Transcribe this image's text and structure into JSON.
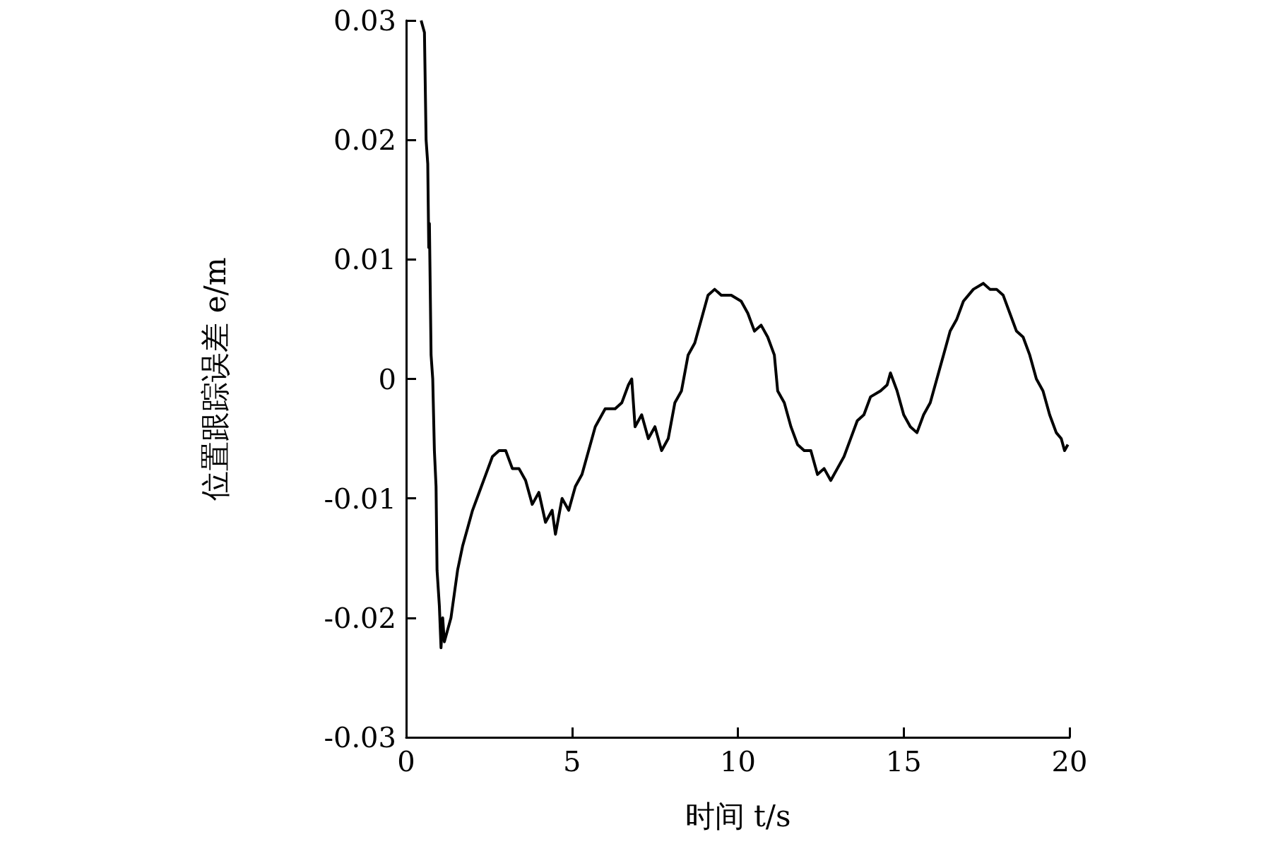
{
  "chart_data": {
    "type": "line",
    "xlabel": "时间 t/s",
    "ylabel": "位置跟踪误差 e/m",
    "x": [
      0.45,
      0.55,
      0.6,
      0.65,
      0.68,
      0.7,
      0.75,
      0.8,
      0.85,
      0.9,
      0.93,
      1.0,
      1.05,
      1.1,
      1.15,
      1.25,
      1.35,
      1.45,
      1.55,
      1.7,
      1.85,
      2.0,
      2.2,
      2.4,
      2.6,
      2.8,
      3.0,
      3.2,
      3.4,
      3.6,
      3.8,
      4.0,
      4.2,
      4.4,
      4.5,
      4.7,
      4.9,
      5.1,
      5.3,
      5.5,
      5.7,
      6.0,
      6.3,
      6.5,
      6.7,
      6.8,
      6.9,
      7.1,
      7.3,
      7.5,
      7.7,
      7.9,
      8.1,
      8.3,
      8.5,
      8.7,
      8.9,
      9.1,
      9.3,
      9.5,
      9.8,
      10.1,
      10.3,
      10.5,
      10.7,
      10.9,
      11.1,
      11.2,
      11.4,
      11.6,
      11.8,
      12.0,
      12.2,
      12.4,
      12.6,
      12.8,
      13.0,
      13.2,
      13.4,
      13.6,
      13.8,
      14.0,
      14.3,
      14.5,
      14.6,
      14.8,
      15.0,
      15.2,
      15.4,
      15.6,
      15.8,
      16.0,
      16.2,
      16.4,
      16.6,
      16.8,
      17.1,
      17.4,
      17.6,
      17.8,
      18.0,
      18.2,
      18.4,
      18.6,
      18.8,
      19.0,
      19.2,
      19.4,
      19.6,
      19.75,
      19.85,
      19.95
    ],
    "series": [
      {
        "color": "#000000",
        "values": [
          0.03,
          0.029,
          0.02,
          0.018,
          0.011,
          0.013,
          0.002,
          0.0,
          -0.006,
          -0.009,
          -0.016,
          -0.019,
          -0.0225,
          -0.02,
          -0.022,
          -0.021,
          -0.02,
          -0.018,
          -0.016,
          -0.014,
          -0.0125,
          -0.011,
          -0.0095,
          -0.008,
          -0.0065,
          -0.006,
          -0.006,
          -0.0075,
          -0.0075,
          -0.0085,
          -0.0105,
          -0.0095,
          -0.012,
          -0.011,
          -0.013,
          -0.01,
          -0.011,
          -0.009,
          -0.008,
          -0.006,
          -0.004,
          -0.0025,
          -0.0025,
          -0.002,
          -0.0005,
          0.0,
          -0.004,
          -0.003,
          -0.005,
          -0.004,
          -0.006,
          -0.005,
          -0.002,
          -0.001,
          0.002,
          0.003,
          0.005,
          0.007,
          0.0075,
          0.007,
          0.007,
          0.0065,
          0.0055,
          0.004,
          0.0045,
          0.0035,
          0.002,
          -0.001,
          -0.002,
          -0.004,
          -0.0055,
          -0.006,
          -0.006,
          -0.008,
          -0.0075,
          -0.0085,
          -0.0075,
          -0.0065,
          -0.005,
          -0.0035,
          -0.003,
          -0.0015,
          -0.001,
          -0.0005,
          0.0005,
          -0.001,
          -0.003,
          -0.004,
          -0.0045,
          -0.003,
          -0.002,
          0.0,
          0.002,
          0.004,
          0.005,
          0.0065,
          0.0075,
          0.008,
          0.0075,
          0.0075,
          0.007,
          0.0055,
          0.004,
          0.0035,
          0.002,
          0.0,
          -0.001,
          -0.003,
          -0.0045,
          -0.005,
          -0.006,
          -0.0055
        ]
      }
    ],
    "xlim": [
      0,
      20
    ],
    "xticks": [
      0,
      5,
      10,
      15,
      20
    ],
    "ylim": [
      -0.03,
      0.03
    ],
    "yticks": [
      -0.03,
      -0.02,
      -0.01,
      0,
      0.01,
      0.02,
      0.03
    ],
    "grid": false,
    "marker": "none",
    "line_style": "solid"
  }
}
